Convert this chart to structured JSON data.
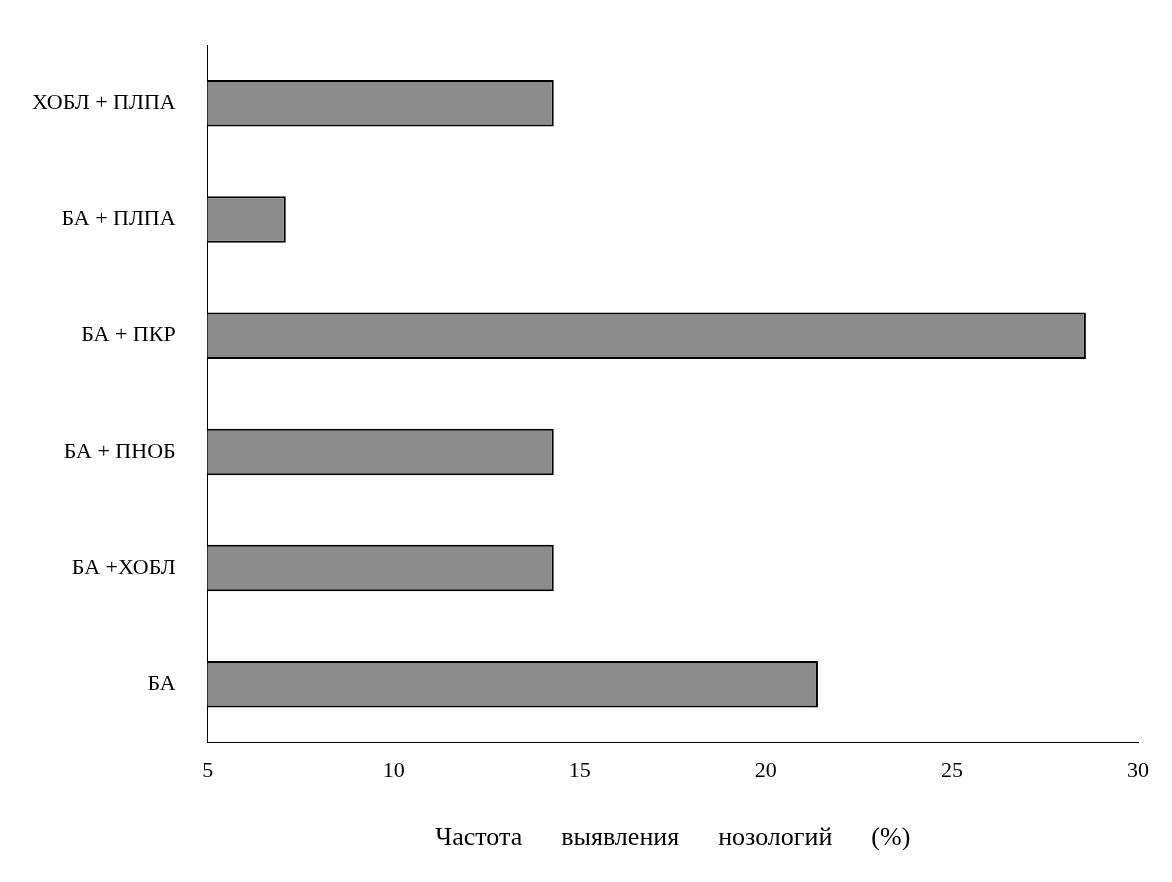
{
  "chart_data": {
    "type": "bar",
    "orientation": "horizontal",
    "xlabel": "Частота      выявления      нозологий      (%)",
    "categories": [
      "ХОБЛ + ПЛПА",
      "БА + ПЛПА",
      "БА + ПКР",
      "БА + ПНОБ",
      "БА +ХОБЛ",
      "БА"
    ],
    "values": [
      14.3,
      7.1,
      28.6,
      14.3,
      14.3,
      21.4
    ],
    "color": "#8c8c8c",
    "xlim": [
      5,
      30
    ],
    "xticks": [
      5,
      10,
      15,
      20,
      25,
      30
    ],
    "grid": false,
    "legend": false
  }
}
